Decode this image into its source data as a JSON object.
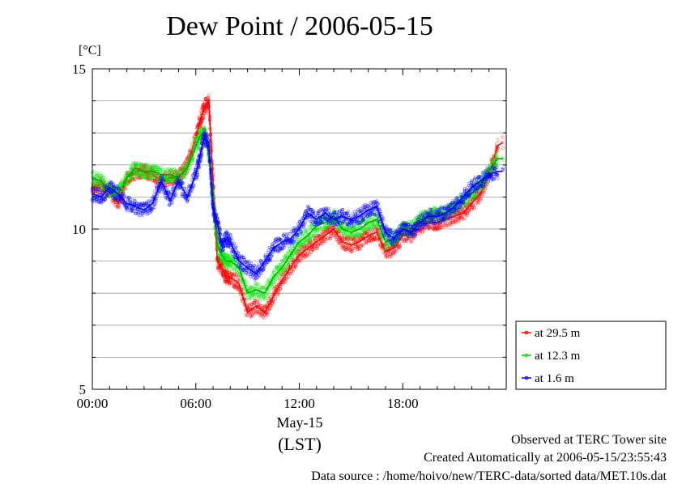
{
  "title": "Dew Point / 2006-05-15",
  "y_unit": "[°C]",
  "x_date_label": "May-15",
  "x_tz_label": "(LST)",
  "footer": {
    "line1": "Observed at TERC Tower site",
    "line2": "Created Automatically at 2006-05-15/23:55:43",
    "line3": "Data source : /home/hoivo/new/TERC-data/sorted  data/MET.10s.dat"
  },
  "chart_data": {
    "type": "line",
    "title": "Dew Point / 2006-05-15",
    "ylabel": "[°C]",
    "xlabel": "May-15 (LST)",
    "x_unit": "hour of day",
    "xlim": [
      0,
      24
    ],
    "ylim": [
      5,
      15
    ],
    "x_ticks": [
      0,
      6,
      12,
      18
    ],
    "x_tick_labels": [
      "00:00",
      "06:00",
      "12:00",
      "18:00"
    ],
    "y_ticks": [
      5,
      10,
      15
    ],
    "y_tick_labels": [
      "5",
      "10",
      "15"
    ],
    "grid": true,
    "legend_position": "outside-right-bottom",
    "x": [
      0.0,
      0.5,
      1.0,
      1.5,
      2.0,
      2.5,
      3.0,
      3.5,
      4.0,
      4.5,
      5.0,
      5.5,
      6.0,
      6.25,
      6.5,
      6.75,
      7.0,
      7.25,
      7.5,
      7.75,
      8.0,
      8.5,
      9.0,
      9.5,
      10.0,
      10.5,
      11.0,
      11.5,
      12.0,
      12.5,
      13.0,
      13.5,
      14.0,
      14.5,
      15.0,
      15.5,
      16.0,
      16.5,
      17.0,
      17.5,
      18.0,
      18.5,
      19.0,
      19.5,
      20.0,
      20.5,
      21.0,
      21.5,
      22.0,
      22.5,
      23.0,
      23.5
    ],
    "series": [
      {
        "name": "at 29.5 m",
        "color": "#ff0000",
        "values": [
          11.3,
          11.4,
          11.2,
          10.8,
          11.6,
          11.8,
          11.8,
          11.7,
          11.5,
          11.6,
          11.6,
          12.0,
          12.8,
          13.4,
          13.8,
          14.0,
          11.5,
          9.0,
          8.8,
          8.5,
          8.5,
          8.3,
          7.4,
          7.6,
          7.4,
          7.9,
          8.4,
          8.8,
          9.2,
          9.4,
          9.6,
          9.8,
          10.0,
          9.6,
          9.5,
          9.6,
          9.8,
          9.9,
          9.3,
          9.4,
          9.8,
          9.8,
          10.1,
          10.2,
          10.2,
          10.3,
          10.4,
          10.5,
          10.8,
          11.1,
          11.7,
          12.6
        ]
      },
      {
        "name": "at 12.3 m",
        "color": "#00ee00",
        "values": [
          11.6,
          11.5,
          11.2,
          11.1,
          11.6,
          11.9,
          11.8,
          11.8,
          11.7,
          11.7,
          11.6,
          11.9,
          12.6,
          12.9,
          13.0,
          12.4,
          11.0,
          9.5,
          9.2,
          9.0,
          9.0,
          8.8,
          8.0,
          8.1,
          8.0,
          8.5,
          8.8,
          9.2,
          9.6,
          9.8,
          10.1,
          10.2,
          10.4,
          10.0,
          9.9,
          10.0,
          10.2,
          10.3,
          9.6,
          9.7,
          10.0,
          10.0,
          10.3,
          10.4,
          10.5,
          10.5,
          10.7,
          10.9,
          11.1,
          11.4,
          11.8,
          12.2
        ]
      },
      {
        "name": "at 1.6 m",
        "color": "#0000ff",
        "values": [
          11.1,
          11.0,
          11.3,
          11.1,
          10.8,
          10.7,
          10.6,
          10.8,
          11.5,
          10.9,
          11.5,
          11.0,
          11.7,
          12.3,
          12.9,
          12.6,
          10.6,
          10.2,
          9.5,
          9.7,
          9.6,
          9.0,
          8.8,
          8.6,
          9.0,
          9.4,
          9.6,
          9.7,
          10.0,
          10.5,
          10.3,
          10.5,
          10.3,
          10.4,
          10.3,
          10.4,
          10.6,
          10.7,
          9.9,
          9.7,
          10.0,
          9.9,
          10.2,
          10.4,
          10.4,
          10.5,
          10.7,
          11.0,
          11.3,
          11.5,
          11.7,
          11.8
        ]
      }
    ]
  }
}
